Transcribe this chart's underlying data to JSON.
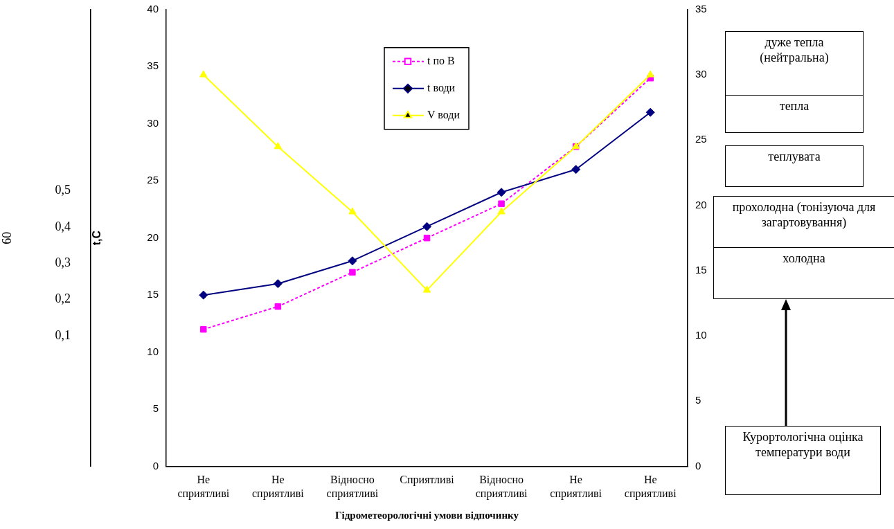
{
  "chart_data": {
    "type": "line",
    "xlabel": "Гідрометеорологічні умови відпочинку",
    "ylabel": "t,C",
    "y3label": "60",
    "categories": [
      "Не сприятливі",
      "Не сприятливі",
      "Відносно сприятливі",
      "Сприятливі",
      "Відносно сприятливі",
      "Не сприятливі",
      "Не сприятливі"
    ],
    "series": [
      {
        "name": "t по В",
        "color": "#ff00ff",
        "values": [
          12,
          14,
          17,
          20,
          23,
          28,
          34
        ],
        "marker": "square",
        "line_style": "dashed"
      },
      {
        "name": "t води",
        "color": "#000080",
        "values": [
          15,
          16,
          18,
          21,
          24,
          26,
          31
        ],
        "marker": "diamond",
        "line_style": "solid"
      },
      {
        "name": "V води",
        "color": "#ffff00",
        "values": [
          30,
          24.5,
          19.5,
          13.5,
          19.5,
          24.5,
          30
        ],
        "marker": "triangle",
        "line_style": "solid",
        "axis": "y2"
      }
    ],
    "ylim": [
      0,
      40
    ],
    "yticks": [
      0,
      5,
      10,
      15,
      20,
      25,
      30,
      35,
      40
    ],
    "y2lim": [
      0,
      35
    ],
    "y2ticks": [
      0,
      5,
      10,
      15,
      20,
      25,
      30,
      35
    ],
    "y3lim": [
      -0.26,
      1
    ],
    "y3ticks": [
      {
        "value": 0.1,
        "label": "0,1"
      },
      {
        "value": 0.2,
        "label": "0,2"
      },
      {
        "value": 0.3,
        "label": "0,3"
      },
      {
        "value": 0.4,
        "label": "0,4"
      },
      {
        "value": 0.5,
        "label": "0,5"
      }
    ],
    "grid": false,
    "legend": "top",
    "annotations": [
      "дуже тепла (нейтральна)",
      "тепла",
      "теплувата",
      "прохолодна (тонізуюча для загартовування)",
      "холодна",
      "Курортологічна оцінка температури води"
    ]
  }
}
